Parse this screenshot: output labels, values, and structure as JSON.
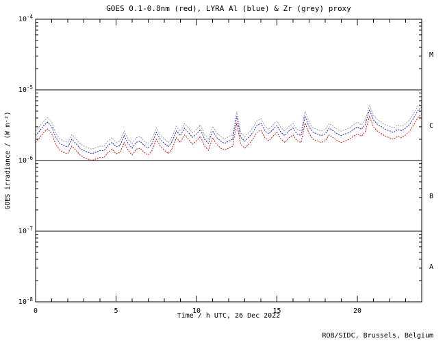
{
  "title": "GOES 0.1-0.8nm (red), LYRA Al (blue) & Zr (grey) proxy",
  "xlabel": "Time / h UTC, 26 Dec 2022",
  "ylabel": "GOES irradiance / (W m⁻²)",
  "credit": "ROB/SIDC, Brussels, Belgium",
  "class_labels": [
    "M",
    "C",
    "B",
    "A"
  ],
  "x_ticks": [
    {
      "h": 0,
      "label": "0"
    },
    {
      "h": 5,
      "label": "5"
    },
    {
      "h": 10,
      "label": "10"
    },
    {
      "h": 15,
      "label": "15"
    },
    {
      "h": 20,
      "label": "20"
    }
  ],
  "y_ticks": [
    {
      "base": "10",
      "exp": "-4"
    },
    {
      "base": "10",
      "exp": "-5"
    },
    {
      "base": "10",
      "exp": "-6"
    },
    {
      "base": "10",
      "exp": "-7"
    },
    {
      "base": "10",
      "exp": "-8"
    }
  ],
  "chart_data": {
    "type": "line",
    "title": "GOES 0.1-0.8nm (red), LYRA Al (blue) & Zr (grey) proxy",
    "xlabel": "Time / h UTC, 26 Dec 2022",
    "ylabel": "GOES irradiance / (W m⁻²)",
    "xlim": [
      0,
      24
    ],
    "ylim": [
      1e-08,
      0.0001
    ],
    "y_axis_type": "log",
    "grid": false,
    "legend_position": "none (colors named in title)",
    "boundaries": [
      1e-05,
      1e-06,
      1e-07
    ],
    "boundary_labels": [
      "M",
      "C",
      "B",
      "A"
    ],
    "value_scale": 1e-06,
    "values_unit": "10⁻⁶ W m⁻²",
    "x": [
      0,
      0.25,
      0.5,
      0.75,
      1,
      1.25,
      1.5,
      1.75,
      2,
      2.25,
      2.5,
      2.75,
      3,
      3.25,
      3.5,
      3.75,
      4,
      4.25,
      4.5,
      4.75,
      5,
      5.25,
      5.5,
      5.75,
      6,
      6.25,
      6.5,
      6.75,
      7,
      7.25,
      7.5,
      7.75,
      8,
      8.25,
      8.5,
      8.75,
      9,
      9.25,
      9.5,
      9.75,
      10,
      10.25,
      10.5,
      10.75,
      11,
      11.25,
      11.5,
      11.75,
      12,
      12.25,
      12.5,
      12.75,
      13,
      13.25,
      13.5,
      13.75,
      14,
      14.25,
      14.5,
      14.75,
      15,
      15.25,
      15.5,
      15.75,
      16,
      16.25,
      16.5,
      16.75,
      17,
      17.25,
      17.5,
      17.75,
      18,
      18.25,
      18.5,
      18.75,
      19,
      19.25,
      19.5,
      19.75,
      20,
      20.25,
      20.5,
      20.75,
      21,
      21.25,
      21.5,
      21.75,
      22,
      22.25,
      22.5,
      22.75,
      23,
      23.25,
      23.5,
      23.75,
      24
    ],
    "series": [
      {
        "key": "goes-red",
        "name": "GOES 0.1-0.8nm",
        "color": "#d01010",
        "values": [
          1.8,
          2.1,
          2.5,
          2.8,
          2.4,
          1.7,
          1.4,
          1.3,
          1.25,
          1.6,
          1.4,
          1.2,
          1.1,
          1.05,
          1,
          1.05,
          1.1,
          1.1,
          1.3,
          1.45,
          1.25,
          1.3,
          1.8,
          1.4,
          1.2,
          1.45,
          1.5,
          1.3,
          1.2,
          1.4,
          2,
          1.6,
          1.4,
          1.25,
          1.5,
          2.1,
          1.8,
          2.3,
          2,
          1.7,
          1.9,
          2.2,
          1.6,
          1.4,
          2.1,
          1.7,
          1.5,
          1.4,
          1.5,
          1.6,
          3.4,
          1.7,
          1.5,
          1.7,
          2,
          2.5,
          2.7,
          2.1,
          1.9,
          2.2,
          2.5,
          2,
          1.8,
          2.1,
          2.3,
          1.9,
          1.8,
          3.4,
          2.4,
          2,
          1.9,
          1.8,
          1.9,
          2.3,
          2.1,
          1.9,
          1.8,
          1.9,
          2,
          2.2,
          2.4,
          2.2,
          2.6,
          4.2,
          3,
          2.6,
          2.4,
          2.2,
          2.1,
          2,
          2.2,
          2.1,
          2.3,
          2.6,
          3.2,
          4,
          4.6
        ]
      },
      {
        "key": "lyra-al-blue",
        "name": "LYRA Al proxy",
        "color": "#2020c0",
        "values": [
          2.25,
          2.63,
          3.13,
          3.5,
          3,
          2.13,
          1.75,
          1.63,
          1.56,
          2,
          1.75,
          1.5,
          1.38,
          1.31,
          1.25,
          1.31,
          1.38,
          1.38,
          1.63,
          1.81,
          1.56,
          1.63,
          2.25,
          1.75,
          1.5,
          1.81,
          1.88,
          1.63,
          1.5,
          1.75,
          2.5,
          2,
          1.75,
          1.56,
          1.88,
          2.63,
          2.25,
          2.88,
          2.5,
          2.13,
          2.38,
          2.75,
          2,
          1.75,
          2.63,
          2.13,
          1.88,
          1.75,
          1.88,
          2,
          4.25,
          2.13,
          1.88,
          2.13,
          2.5,
          3.13,
          3.38,
          2.63,
          2.38,
          2.75,
          3.13,
          2.5,
          2.25,
          2.63,
          2.88,
          2.38,
          2.25,
          4.25,
          3,
          2.5,
          2.38,
          2.25,
          2.38,
          2.88,
          2.63,
          2.38,
          2.25,
          2.38,
          2.5,
          2.75,
          3,
          2.75,
          3.25,
          5.25,
          3.75,
          3.25,
          3,
          2.75,
          2.63,
          2.5,
          2.75,
          2.63,
          2.88,
          3.25,
          4,
          5,
          5.75
        ]
      },
      {
        "key": "lyra-zr-grey",
        "name": "LYRA Zr proxy",
        "color": "#9a9a9a",
        "values": [
          2.61,
          3.05,
          3.63,
          4.06,
          3.48,
          2.47,
          2.03,
          1.89,
          1.81,
          2.32,
          2.03,
          1.74,
          1.6,
          1.52,
          1.45,
          1.52,
          1.6,
          1.6,
          1.89,
          2.1,
          1.81,
          1.89,
          2.61,
          2.03,
          1.74,
          2.1,
          2.18,
          1.89,
          1.74,
          2.03,
          2.9,
          2.32,
          2.03,
          1.81,
          2.18,
          3.05,
          2.61,
          3.34,
          2.9,
          2.47,
          2.76,
          3.19,
          2.32,
          2.03,
          3.05,
          2.47,
          2.18,
          2.03,
          2.18,
          2.32,
          4.93,
          2.47,
          2.18,
          2.47,
          2.9,
          3.63,
          3.92,
          3.05,
          2.76,
          3.19,
          3.63,
          2.9,
          2.61,
          3.05,
          3.34,
          2.76,
          2.61,
          4.93,
          3.48,
          2.9,
          2.76,
          2.61,
          2.76,
          3.34,
          3.05,
          2.76,
          2.61,
          2.76,
          2.9,
          3.19,
          3.48,
          3.19,
          3.77,
          6.09,
          4.35,
          3.77,
          3.48,
          3.19,
          3.05,
          2.9,
          3.19,
          3.05,
          3.34,
          3.77,
          4.64,
          5.8,
          6.67
        ]
      }
    ]
  }
}
